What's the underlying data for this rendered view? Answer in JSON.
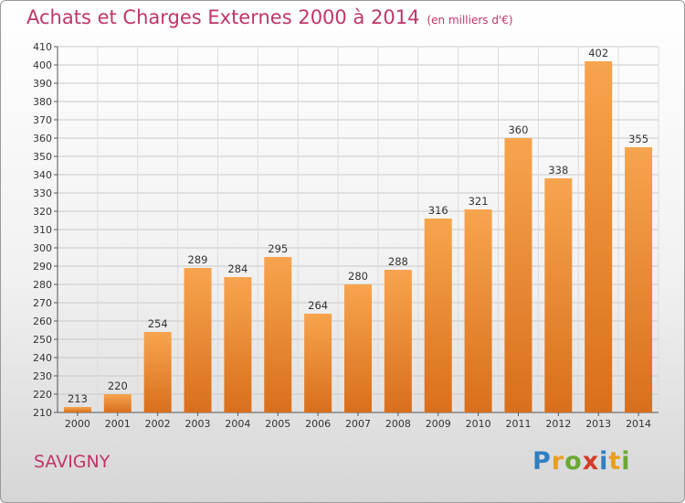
{
  "title": "Achats et Charges Externes 2000 à 2014",
  "unit": "(en milliers d'€)",
  "place": "SAVIGNY",
  "logo": {
    "text": "Proxiti",
    "letters": [
      {
        "ch": "P",
        "color": "#2f7fc1"
      },
      {
        "ch": "r",
        "color": "#e8a020"
      },
      {
        "ch": "o",
        "color": "#6aa832"
      },
      {
        "ch": "x",
        "color": "#d23c2a"
      },
      {
        "ch": "i",
        "color": "#2f7fc1"
      },
      {
        "ch": "t",
        "color": "#e8a020"
      },
      {
        "ch": "i",
        "color": "#6aa832"
      }
    ]
  },
  "colors": {
    "bar_light": "#f7a44e",
    "bar_dark": "#d96f1c",
    "title": "#c0356a"
  },
  "chart_data": {
    "type": "bar",
    "title": "Achats et Charges Externes 2000 à 2014",
    "xlabel": "",
    "ylabel": "",
    "ylim": [
      210,
      410
    ],
    "ytick_step": 10,
    "grid": true,
    "categories": [
      "2000",
      "2001",
      "2002",
      "2003",
      "2004",
      "2005",
      "2006",
      "2007",
      "2008",
      "2009",
      "2010",
      "2011",
      "2012",
      "2013",
      "2014"
    ],
    "values": [
      213,
      220,
      254,
      289,
      284,
      295,
      264,
      280,
      288,
      316,
      321,
      360,
      338,
      402,
      355
    ]
  }
}
